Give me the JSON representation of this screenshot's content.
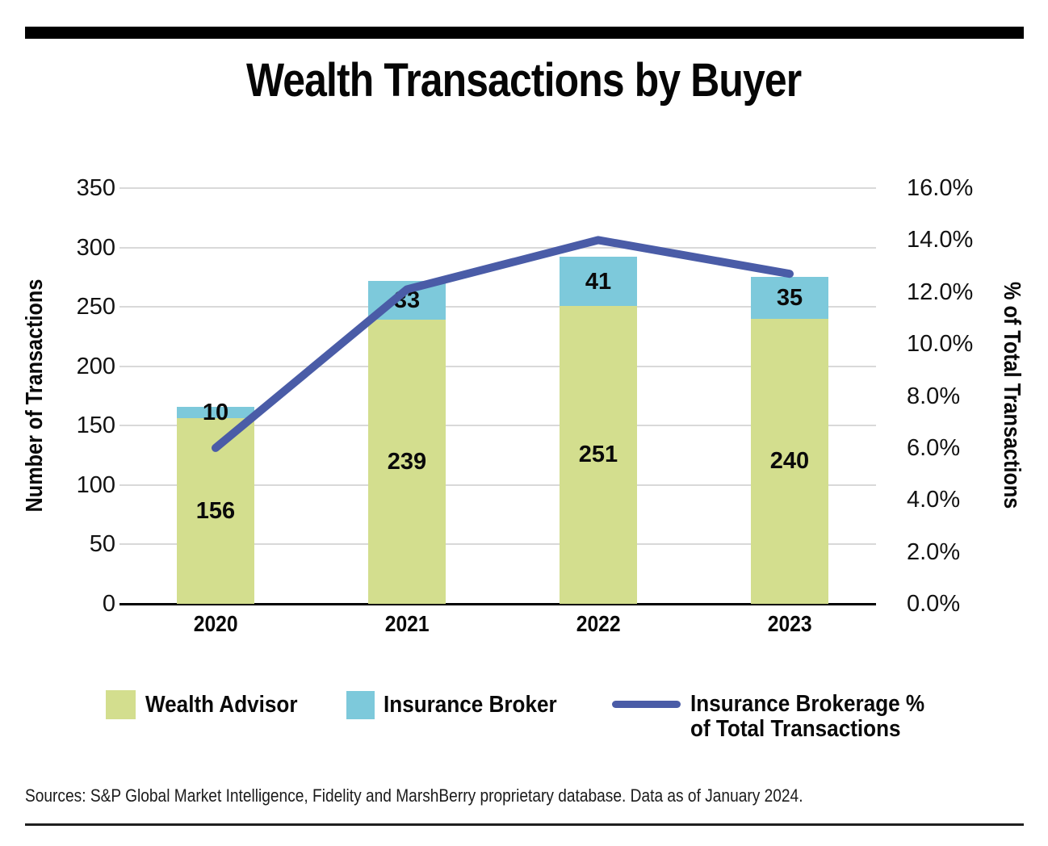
{
  "page": {
    "title": "Wealth Transactions by Buyer",
    "source_note": "Sources: S&P Global Market Intelligence, Fidelity and MarshBerry proprietary database. Data as of January 2024."
  },
  "colors": {
    "wealth_advisor": "#D3DE8E",
    "insurance_broker": "#7DC9DB",
    "line": "#4A5CA7",
    "gridline": "#D9D9D9",
    "axis": "#000000"
  },
  "chart_data": {
    "type": "bar",
    "subtype": "stacked-bars-with-line-overlay",
    "title": "Wealth Transactions by Buyer",
    "categories": [
      "2020",
      "2021",
      "2022",
      "2023"
    ],
    "series": [
      {
        "name": "Wealth Advisor",
        "values": [
          156,
          239,
          251,
          240
        ],
        "color": "#D3DE8E"
      },
      {
        "name": "Insurance Broker",
        "values": [
          10,
          33,
          41,
          35
        ],
        "color": "#7DC9DB"
      }
    ],
    "line_series": {
      "name": "Insurance Brokerage % of Total Transactions",
      "values_pct": [
        6.0,
        12.1,
        14.0,
        12.7
      ],
      "color": "#4A5CA7"
    },
    "left_axis": {
      "label": "Number of Transactions",
      "min": 0,
      "max": 350,
      "step": 50,
      "ticks": [
        "350",
        "300",
        "250",
        "200",
        "150",
        "100",
        "50",
        "0"
      ]
    },
    "right_axis": {
      "label": "% of Total Transactions",
      "min": 0,
      "max": 16,
      "step": 2,
      "ticks": [
        "16.0%",
        "14.0%",
        "12.0%",
        "10.0%",
        "8.0%",
        "6.0%",
        "4.0%",
        "2.0%",
        "0.0%"
      ]
    },
    "grid": true,
    "legend_position": "bottom"
  },
  "legend": {
    "items": [
      {
        "type": "box",
        "label": "Wealth Advisor",
        "color": "#D3DE8E"
      },
      {
        "type": "box",
        "label": "Insurance Broker",
        "color": "#7DC9DB"
      },
      {
        "type": "line",
        "label_line1": "Insurance Brokerage %",
        "label_line2": "of Total Transactions",
        "color": "#4A5CA7"
      }
    ]
  }
}
